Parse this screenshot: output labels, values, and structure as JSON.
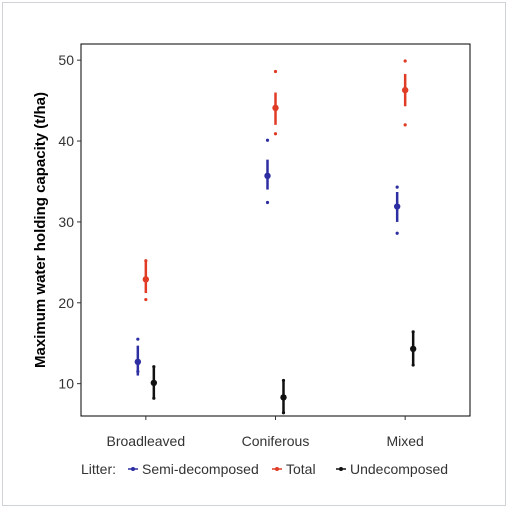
{
  "chart_data": {
    "type": "scatter",
    "title": "",
    "xlabel": "",
    "ylabel": "Maximum water holding capacity (t/ha)",
    "categories": [
      "Broadleaved",
      "Coniferous",
      "Mixed"
    ],
    "yticks": [
      "10",
      "20",
      "30",
      "40",
      "50"
    ],
    "ylim": [
      6,
      52
    ],
    "grid": false,
    "legend": {
      "title": "Litter:",
      "position": "bottom"
    },
    "series": [
      {
        "name": "Semi-decomposed",
        "color": "#2e2ea3",
        "values": [
          12.7,
          35.7,
          31.9
        ],
        "lower": [
          11.0,
          34.0,
          30.0
        ],
        "upper": [
          14.7,
          37.7,
          33.7
        ],
        "min": [
          11.5,
          32.4,
          28.6
        ],
        "max": [
          15.5,
          40.1,
          34.3
        ]
      },
      {
        "name": "Total",
        "color": "#e03b24",
        "values": [
          22.9,
          44.1,
          46.3
        ],
        "lower": [
          21.2,
          42.0,
          44.3
        ],
        "upper": [
          25.1,
          46.0,
          48.3
        ],
        "min": [
          20.4,
          40.9,
          42.0
        ],
        "max": [
          25.2,
          48.6,
          49.9
        ]
      },
      {
        "name": "Undecomposed",
        "color": "#111111",
        "values": [
          10.1,
          8.3,
          14.3
        ],
        "lower": [
          8.2,
          6.4,
          12.3
        ],
        "upper": [
          12.1,
          10.4,
          16.4
        ],
        "min": [
          8.2,
          6.4,
          12.3
        ],
        "max": [
          12.1,
          10.4,
          16.4
        ]
      }
    ]
  }
}
